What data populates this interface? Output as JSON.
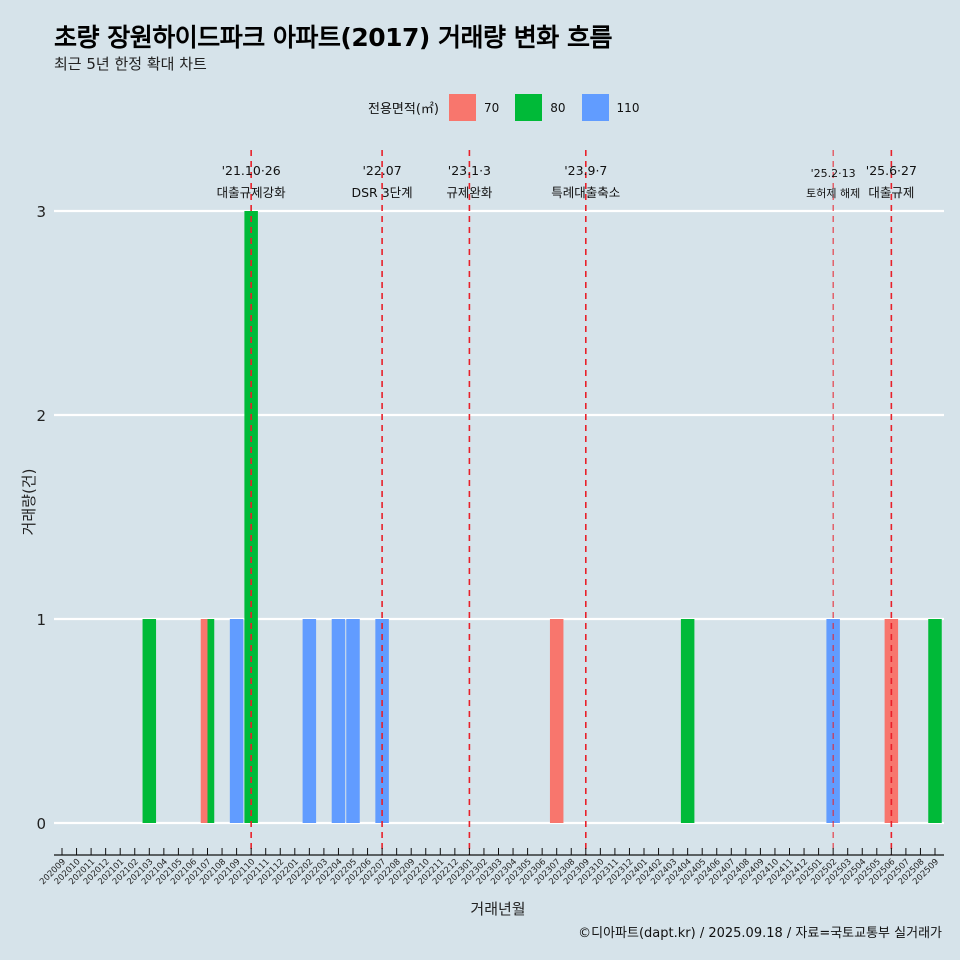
{
  "title": "초량 장원하이드파크 아파트(2017) 거래량 변화 흐름",
  "subtitle": "최근 5년 한정 확대 차트",
  "caption": "©디아파트(dapt.kr) / 2025.09.18 / 자료=국토교통부 실거래가",
  "legend": {
    "title": "전용면적(㎡)",
    "items": [
      {
        "label": "70",
        "color": "#f8766d"
      },
      {
        "label": "80",
        "color": "#00ba38"
      },
      {
        "label": "110",
        "color": "#619cff"
      }
    ]
  },
  "chart_data": {
    "type": "bar",
    "title": "초량 장원하이드파크 아파트(2017) 거래량 변화 흐름",
    "xlabel": "거래년월",
    "ylabel": "거래량(건)",
    "ylim": [
      0,
      3
    ],
    "yticks": [
      0,
      1,
      2,
      3
    ],
    "grid": true,
    "legend_position": "top",
    "categories": [
      "202009",
      "202010",
      "202011",
      "202012",
      "202101",
      "202102",
      "202103",
      "202104",
      "202105",
      "202106",
      "202107",
      "202108",
      "202109",
      "202110",
      "202111",
      "202112",
      "202201",
      "202202",
      "202203",
      "202204",
      "202205",
      "202206",
      "202207",
      "202208",
      "202209",
      "202210",
      "202211",
      "202212",
      "202301",
      "202302",
      "202303",
      "202304",
      "202305",
      "202306",
      "202307",
      "202308",
      "202309",
      "202310",
      "202311",
      "202312",
      "202401",
      "202402",
      "202403",
      "202404",
      "202405",
      "202406",
      "202407",
      "202408",
      "202409",
      "202410",
      "202411",
      "202412",
      "202501",
      "202502",
      "202503",
      "202504",
      "202505",
      "202506",
      "202507",
      "202508",
      "202509"
    ],
    "bars": [
      {
        "month": "202103",
        "series": "80",
        "value": 1
      },
      {
        "month": "202107",
        "series": "70",
        "value": 1,
        "dodge": "left"
      },
      {
        "month": "202107",
        "series": "80",
        "value": 1,
        "dodge": "right"
      },
      {
        "month": "202109",
        "series": "110",
        "value": 1
      },
      {
        "month": "202110",
        "series": "80",
        "value": 3
      },
      {
        "month": "202202",
        "series": "110",
        "value": 1
      },
      {
        "month": "202204",
        "series": "110",
        "value": 1
      },
      {
        "month": "202205",
        "series": "110",
        "value": 1
      },
      {
        "month": "202207",
        "series": "110",
        "value": 1
      },
      {
        "month": "202307",
        "series": "70",
        "value": 1
      },
      {
        "month": "202404",
        "series": "80",
        "value": 1
      },
      {
        "month": "202502",
        "series": "110",
        "value": 1
      },
      {
        "month": "202506",
        "series": "70",
        "value": 1
      },
      {
        "month": "202509",
        "series": "80",
        "value": 1
      }
    ],
    "events": [
      {
        "month": "202110",
        "date": "'21.10·26",
        "label": "대출규제강화"
      },
      {
        "month": "202207",
        "date": "'22.07",
        "label": "DSR 3단계"
      },
      {
        "month": "202301",
        "date": "'23.1·3",
        "label": "규제완화"
      },
      {
        "month": "202309",
        "date": "'23.9·7",
        "label": "특례대출축소"
      },
      {
        "month": "202502",
        "date": "'25.2·13",
        "label": "토허제 해제",
        "small": true
      },
      {
        "month": "202506",
        "date": "'25.6·27",
        "label": "대출규제"
      }
    ]
  }
}
